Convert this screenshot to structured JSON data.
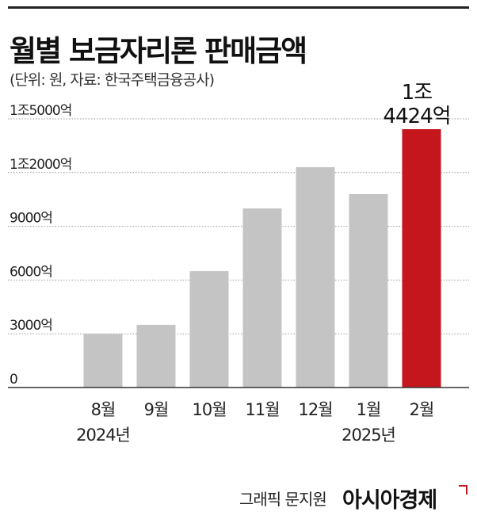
{
  "title": "월별 보금자리론 판매금액",
  "subtitle": "(단위: 원, 자료: 한국주택금융공사)",
  "credit": "그래픽 문지원",
  "brand": "아시아경제",
  "colors": {
    "bar": "#c4c4c4",
    "highlight": "#c4161c",
    "text": "#222222"
  },
  "chart_data": {
    "type": "bar",
    "categories": [
      "8월",
      "9월",
      "10월",
      "11월",
      "12월",
      "1월",
      "2월"
    ],
    "year_labels": [
      {
        "text": "2024년",
        "under": 0
      },
      {
        "text": "2025년",
        "under": 5
      }
    ],
    "values": [
      3000,
      3500,
      6500,
      10000,
      12300,
      10800,
      14424
    ],
    "highlight_index": 6,
    "highlight_label": [
      "1조",
      "4424억"
    ],
    "yticks": [
      0,
      3000,
      6000,
      9000,
      12000,
      15000
    ],
    "ytick_labels": [
      "0",
      "3000억",
      "6000억",
      "9000억",
      "1조2000억",
      "1조5000억"
    ],
    "ylim": [
      0,
      15500
    ],
    "grid": true,
    "xlabel": "",
    "ylabel": ""
  }
}
